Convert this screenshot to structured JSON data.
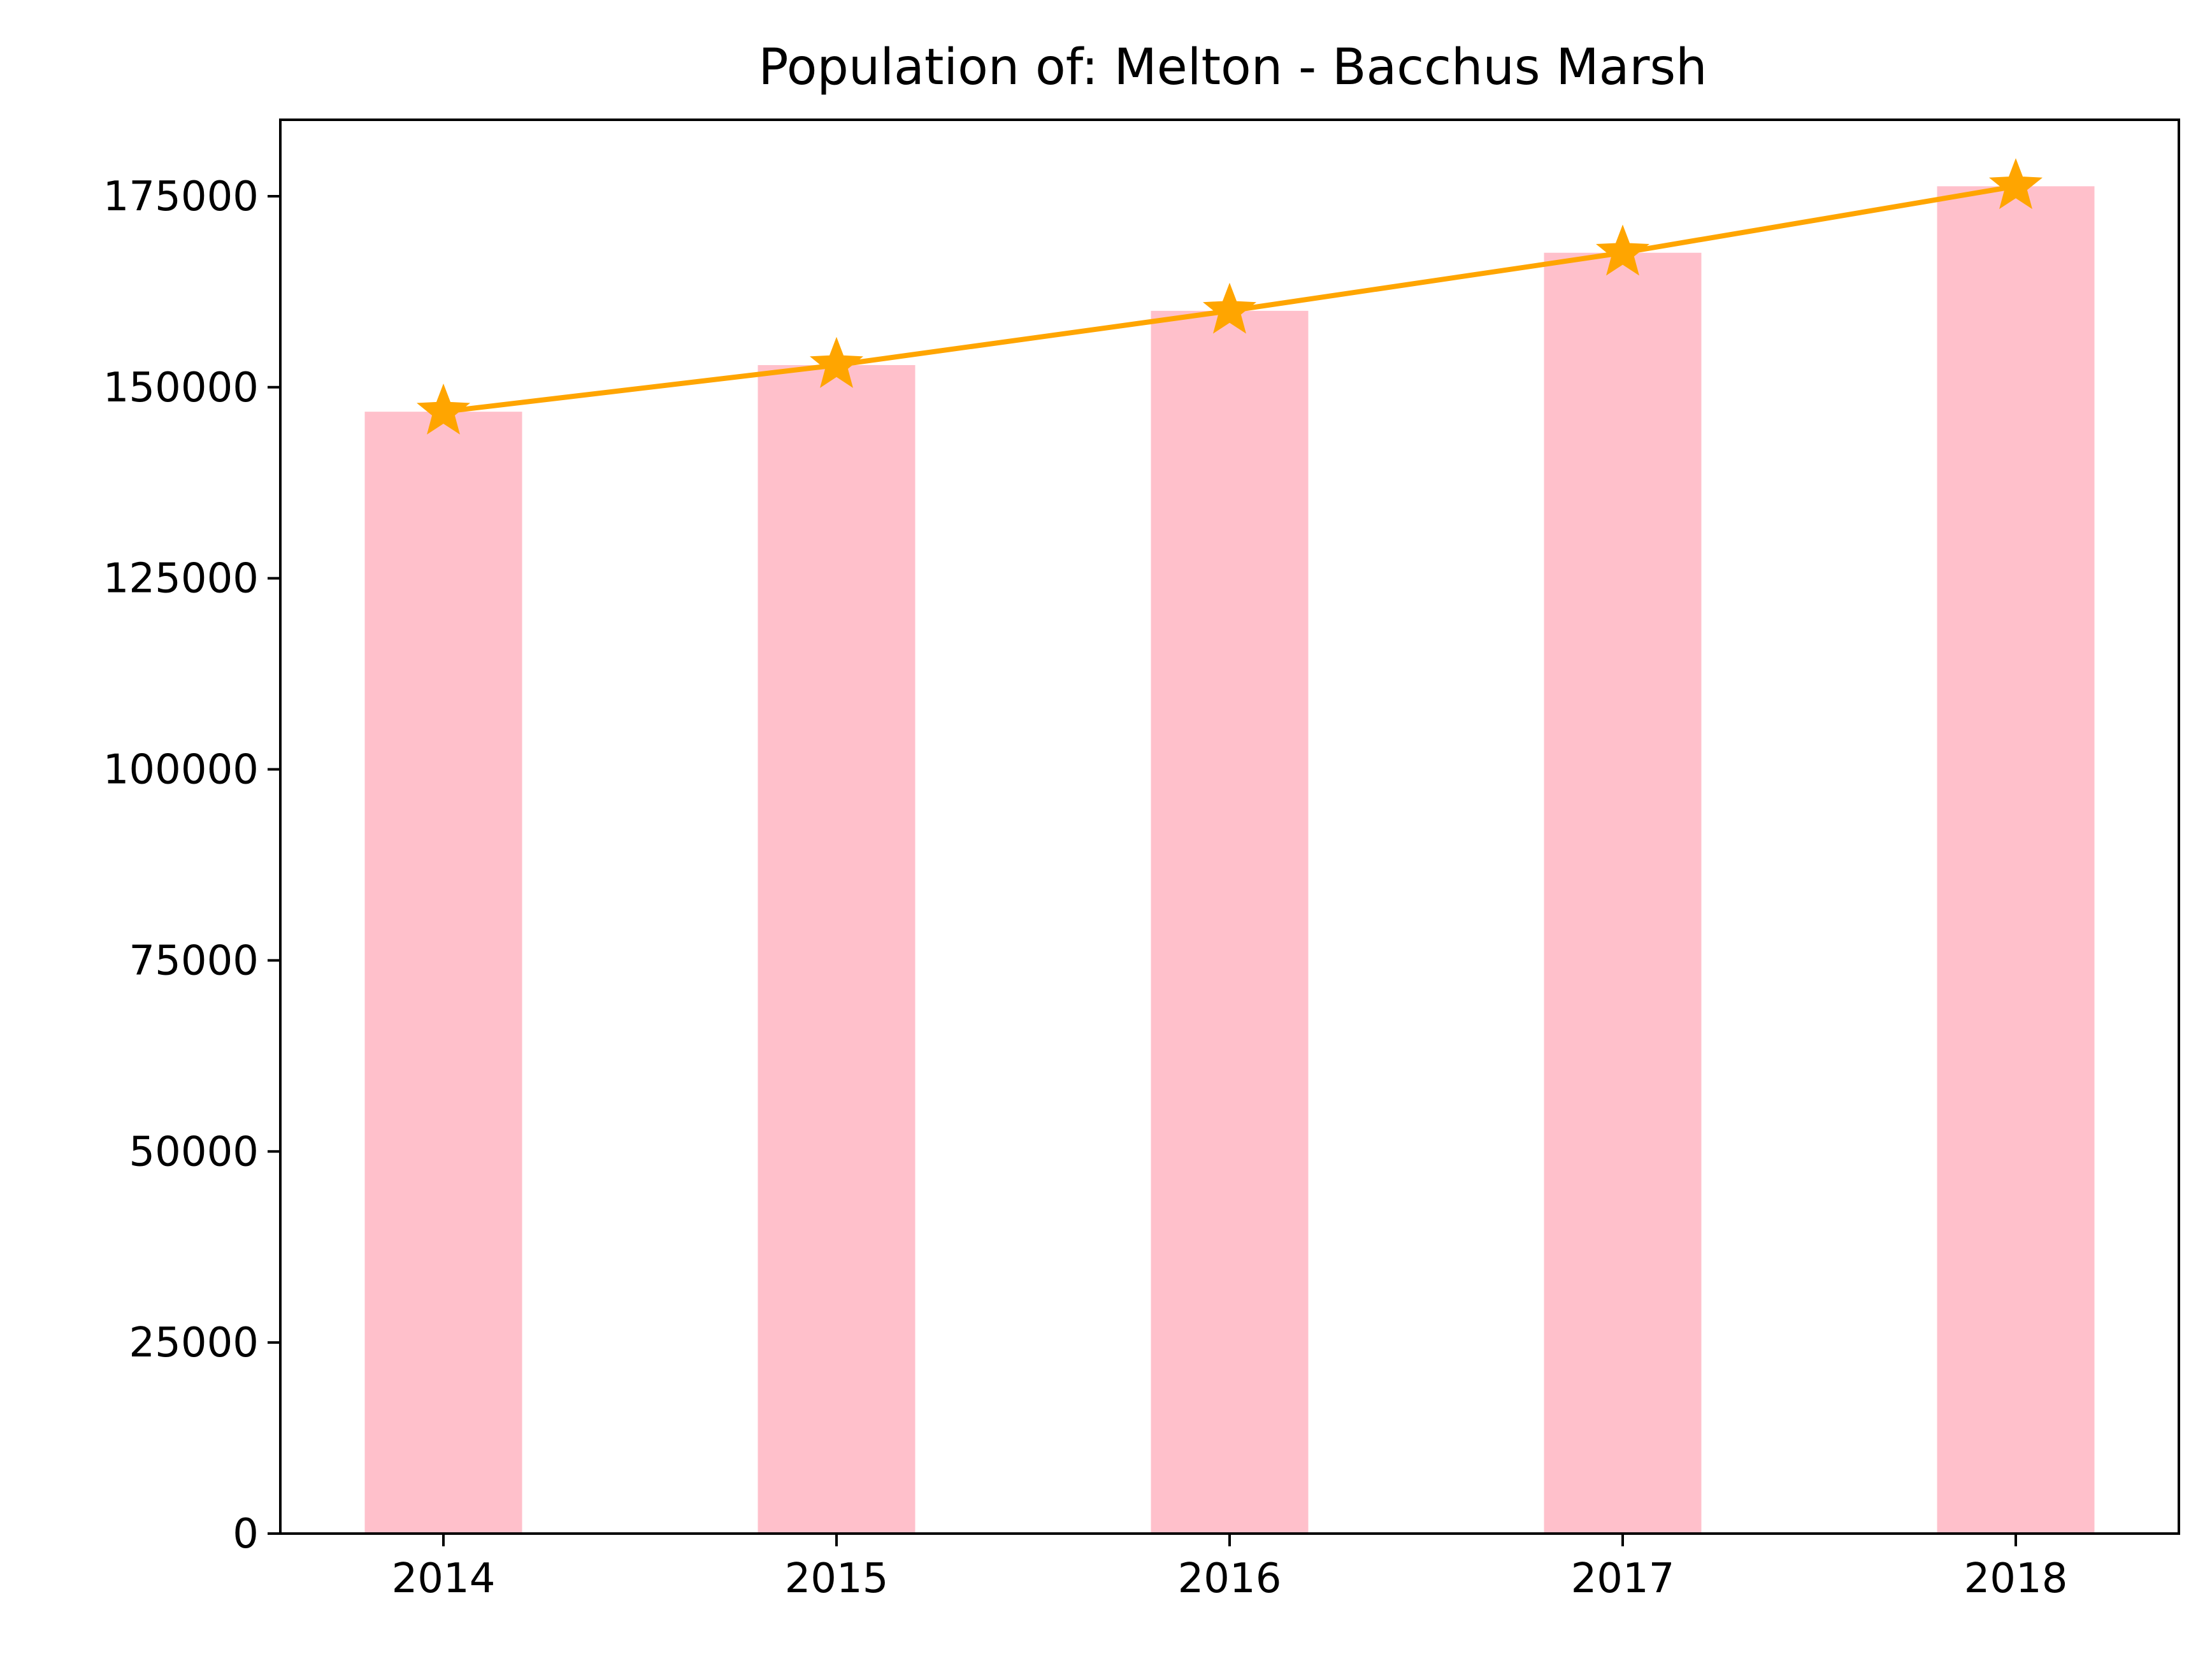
{
  "chart_data": {
    "type": "bar",
    "title": "Population of: Melton - Bacchus Marsh",
    "xlabel": "",
    "ylabel": "",
    "categories": [
      "2014",
      "2015",
      "2016",
      "2017",
      "2018"
    ],
    "values": [
      146800,
      152900,
      160000,
      167600,
      176300
    ],
    "ylim": [
      0,
      185000
    ],
    "yticks": [
      0,
      25000,
      50000,
      75000,
      100000,
      125000,
      150000,
      175000
    ],
    "ytick_labels": [
      "0",
      "25000",
      "50000",
      "75000",
      "100000",
      "125000",
      "150000",
      "175000"
    ],
    "grid": false,
    "legend": "none",
    "overlay_line": {
      "type": "line",
      "marker": "star",
      "values": [
        146800,
        152900,
        160000,
        167600,
        176300
      ]
    },
    "colors": {
      "bar": "#ffc0cb",
      "line": "#ffa500",
      "axis": "#000000"
    }
  }
}
